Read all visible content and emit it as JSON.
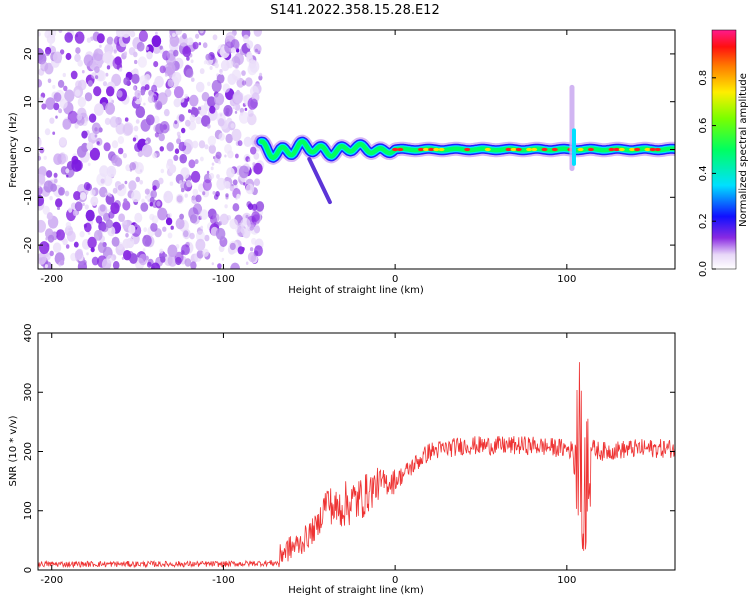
{
  "title": "S141.2022.358.15.28.E12",
  "chart_data": [
    {
      "type": "heatmap",
      "xlabel": "Height of straight line (km)",
      "ylabel": "Frequency (Hz)",
      "xlim": [
        -208,
        163
      ],
      "ylim": [
        -25,
        25
      ],
      "xticks": [
        "-200",
        "-100",
        "0",
        "100"
      ],
      "xtick_values": [
        -200,
        -100,
        0,
        100
      ],
      "yticks": [
        "-20",
        "-10",
        "0",
        "10",
        "20"
      ],
      "ytick_values": [
        -20,
        -10,
        0,
        10,
        20
      ],
      "noise_region_x": [
        -208,
        -78
      ],
      "signal": {
        "center_frequency_hz": 0,
        "start_x": -78,
        "end_x": 163,
        "side_branch": {
          "x": [
            -50,
            -38
          ],
          "y": [
            -2,
            -11
          ]
        },
        "spike": {
          "x": 103,
          "y": [
            -4,
            13
          ]
        }
      },
      "colorbar": {
        "label": "Normalized spectral amplitude",
        "ticks": [
          "0.0",
          "0.2",
          "0.4",
          "0.6",
          "0.8"
        ],
        "tick_values": [
          0.0,
          0.2,
          0.4,
          0.6,
          0.8
        ],
        "range": [
          0,
          1
        ],
        "colormap": "rainbow"
      }
    },
    {
      "type": "line",
      "xlabel": "Height of straight line (km)",
      "ylabel": "SNR (10 * v/v)",
      "xlim": [
        -208,
        163
      ],
      "ylim": [
        0,
        400
      ],
      "xticks": [
        "-200",
        "-100",
        "0",
        "100"
      ],
      "xtick_values": [
        -200,
        -100,
        0,
        100
      ],
      "yticks": [
        "0",
        "100",
        "200",
        "300",
        "400"
      ],
      "ytick_values": [
        0,
        100,
        200,
        300,
        400
      ],
      "color": "#ee3333",
      "series": [
        {
          "x": [
            -208,
            -150,
            -100,
            -68,
            -66,
            -55,
            -45,
            -40,
            -35,
            -30,
            -20,
            -10,
            0,
            10,
            20,
            30,
            40,
            60,
            80,
            100,
            105,
            108,
            110,
            112,
            115,
            120,
            140,
            163
          ],
          "values": [
            10,
            10,
            10,
            12,
            30,
            45,
            75,
            120,
            100,
            110,
            120,
            145,
            150,
            175,
            200,
            205,
            210,
            210,
            210,
            205,
            200,
            220,
            80,
            210,
            205,
            200,
            205,
            205
          ]
        }
      ]
    }
  ]
}
